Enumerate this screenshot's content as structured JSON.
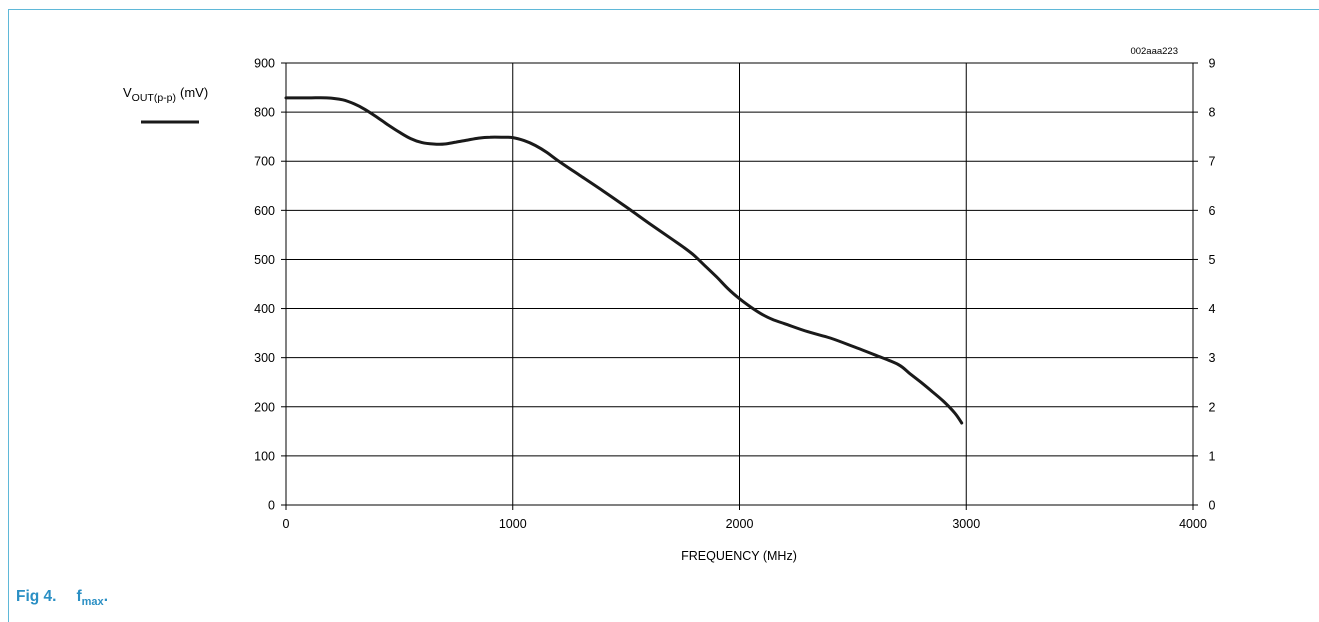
{
  "figure": {
    "label": "Fig 4.",
    "title_main": "f",
    "title_sub": "max",
    "title_end": ".",
    "code": "002aaa223",
    "accent_color": "#2a8fc4",
    "frame_color": "#5fb8d8"
  },
  "chart_data": {
    "type": "line",
    "xlabel": "FREQUENCY (MHz)",
    "ylabel_main": "V",
    "ylabel_sub": "OUT(p-p)",
    "ylabel_unit": "(mV)",
    "xlim": [
      0,
      4000
    ],
    "ylim": [
      0,
      900
    ],
    "y2lim": [
      0,
      9
    ],
    "xticks": [
      0,
      1000,
      2000,
      3000,
      4000
    ],
    "yticks": [
      0,
      100,
      200,
      300,
      400,
      500,
      600,
      700,
      800,
      900
    ],
    "y2ticks": [
      0,
      1,
      2,
      3,
      4,
      5,
      6,
      7,
      8,
      9
    ],
    "grid": true,
    "legend_position": "top-left, outside plot",
    "series": [
      {
        "name": "V_OUT(p-p) (mV)",
        "color": "#1a1a1a",
        "x": [
          0,
          100,
          180,
          250,
          300,
          350,
          400,
          450,
          500,
          550,
          600,
          650,
          700,
          750,
          800,
          850,
          900,
          950,
          1000,
          1050,
          1100,
          1150,
          1200,
          1300,
          1400,
          1500,
          1600,
          1700,
          1750,
          1800,
          1850,
          1900,
          1950,
          2000,
          2050,
          2100,
          2150,
          2200,
          2300,
          2400,
          2500,
          2600,
          2700,
          2750,
          2800,
          2850,
          2900,
          2950,
          2980
        ],
        "y": [
          829,
          829,
          829,
          825,
          817,
          805,
          790,
          774,
          759,
          746,
          738,
          735,
          735,
          739,
          743,
          747,
          749,
          749,
          748,
          742,
          732,
          718,
          701,
          670,
          639,
          607,
          574,
          542,
          526,
          508,
          486,
          464,
          440,
          420,
          403,
          388,
          377,
          369,
          353,
          340,
          323,
          305,
          286,
          268,
          250,
          231,
          211,
          187,
          167
        ]
      }
    ]
  }
}
